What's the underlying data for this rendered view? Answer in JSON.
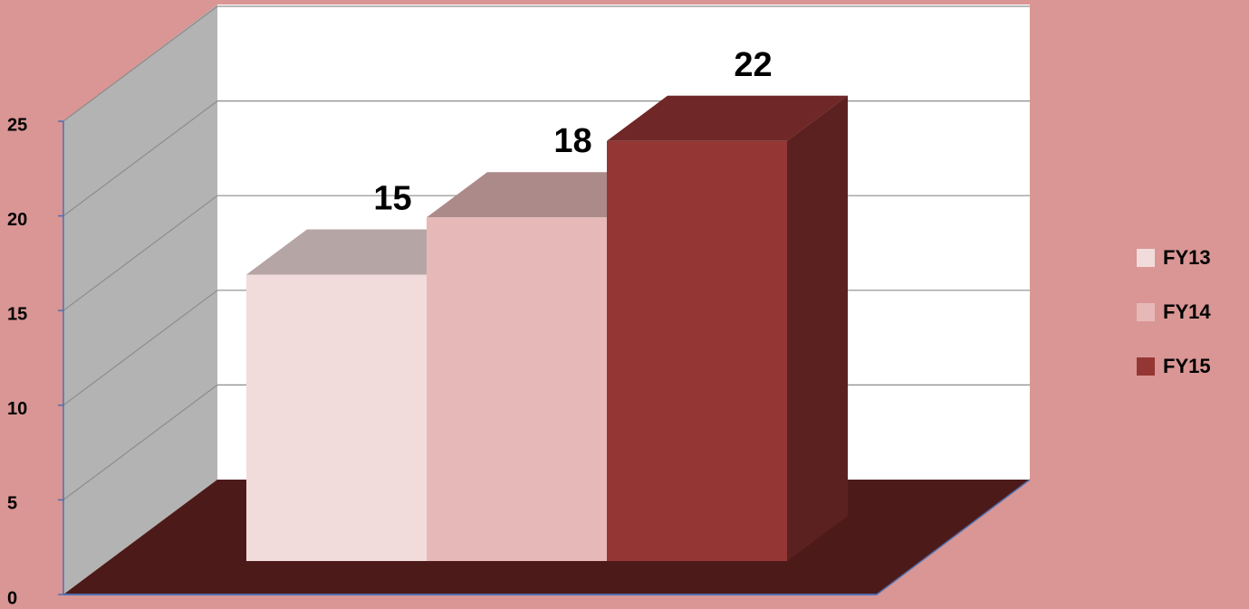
{
  "chart_data": {
    "type": "bar3d",
    "categories": [
      null
    ],
    "series": [
      {
        "name": "FY13",
        "color": "#f2dcdb",
        "values": [
          15
        ]
      },
      {
        "name": "FY14",
        "color": "#e6b9b8",
        "values": [
          18
        ]
      },
      {
        "name": "FY15",
        "color": "#943634",
        "values": [
          22
        ]
      }
    ],
    "ylim": [
      0,
      25
    ],
    "yticks": [
      0,
      5,
      10,
      15,
      20,
      25
    ],
    "grid": true,
    "legend": "right",
    "data_labels": true
  }
}
